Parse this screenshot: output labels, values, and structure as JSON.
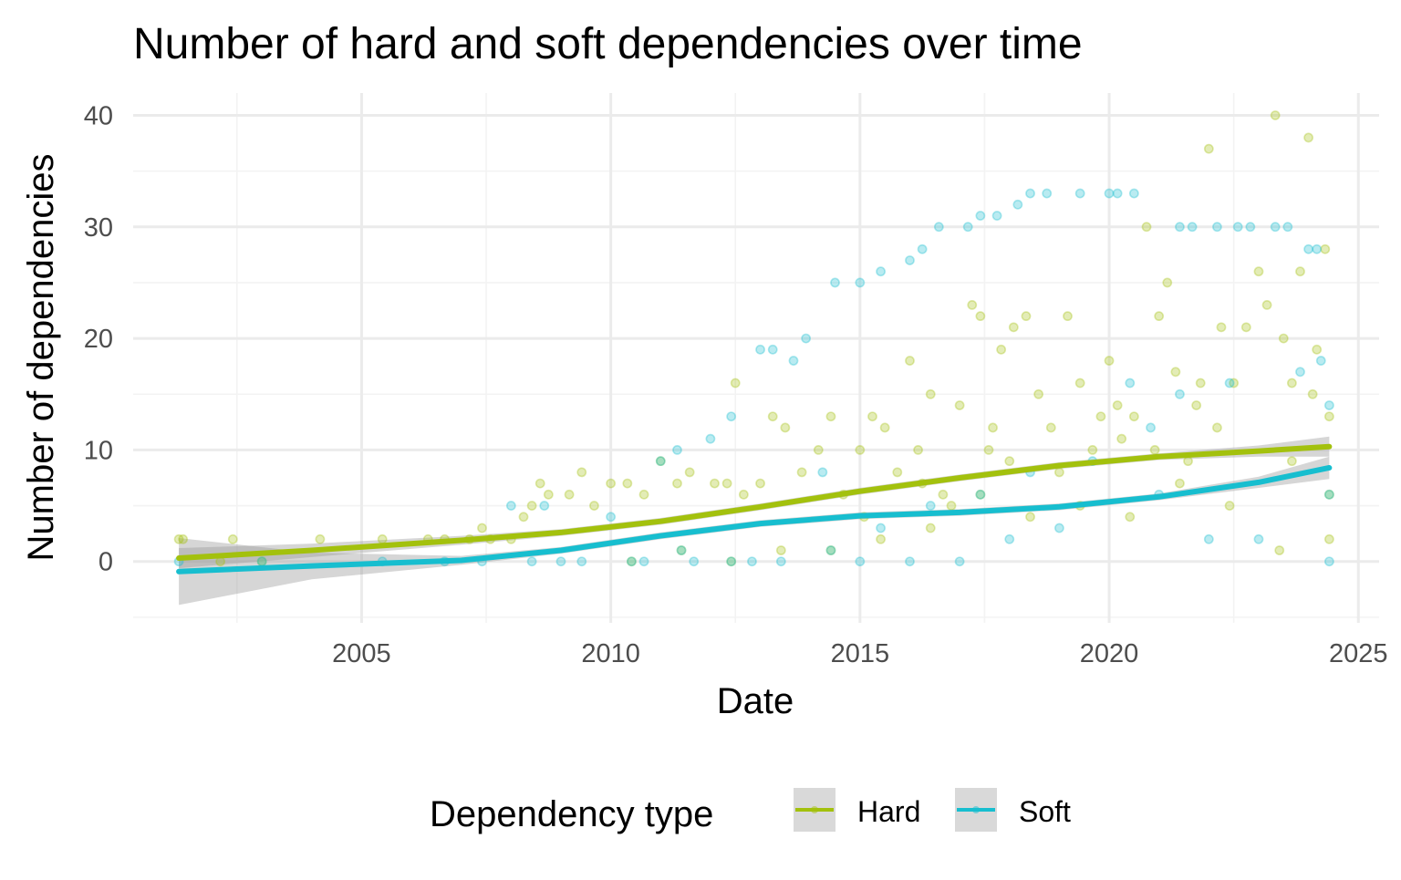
{
  "chart_data": {
    "type": "scatter",
    "title": "Number of hard and soft dependencies over time",
    "xlabel": "Date",
    "ylabel": "Number of dependencies",
    "x_ticks": [
      "2005",
      "2010",
      "2015",
      "2020",
      "2025"
    ],
    "y_ticks": [
      "0",
      "10",
      "20",
      "30",
      "40"
    ],
    "xlim": [
      "2000-06",
      "2025-06"
    ],
    "ylim": [
      -5.5,
      42
    ],
    "grid": true,
    "legend": {
      "title": "Dependency type",
      "position": "bottom",
      "entries": [
        "Hard",
        "Soft"
      ]
    },
    "series": [
      {
        "name": "Hard",
        "color": "#a3c10d",
        "points": [
          [
            "2001-05",
            2
          ],
          [
            "2001-06",
            2
          ],
          [
            "2002-03",
            0
          ],
          [
            "2002-06",
            2
          ],
          [
            "2003-01",
            0
          ],
          [
            "2004-03",
            2
          ],
          [
            "2005-06",
            2
          ],
          [
            "2006-05",
            2
          ],
          [
            "2006-09",
            2
          ],
          [
            "2007-03",
            2
          ],
          [
            "2007-06",
            3
          ],
          [
            "2007-08",
            2
          ],
          [
            "2008-01",
            2
          ],
          [
            "2008-04",
            4
          ],
          [
            "2008-06",
            5
          ],
          [
            "2008-08",
            7
          ],
          [
            "2008-10",
            6
          ],
          [
            "2009-03",
            6
          ],
          [
            "2009-06",
            8
          ],
          [
            "2009-09",
            5
          ],
          [
            "2010-01",
            7
          ],
          [
            "2010-05",
            7
          ],
          [
            "2010-09",
            6
          ],
          [
            "2011-01",
            9
          ],
          [
            "2011-05",
            7
          ],
          [
            "2011-08",
            8
          ],
          [
            "2012-02",
            7
          ],
          [
            "2012-05",
            7
          ],
          [
            "2012-07",
            16
          ],
          [
            "2012-09",
            6
          ],
          [
            "2013-01",
            7
          ],
          [
            "2013-04",
            13
          ],
          [
            "2013-07",
            12
          ],
          [
            "2013-11",
            8
          ],
          [
            "2014-03",
            10
          ],
          [
            "2014-06",
            13
          ],
          [
            "2014-09",
            6
          ],
          [
            "2015-01",
            10
          ],
          [
            "2015-04",
            13
          ],
          [
            "2015-07",
            12
          ],
          [
            "2015-10",
            8
          ],
          [
            "2016-01",
            18
          ],
          [
            "2016-03",
            10
          ],
          [
            "2016-06",
            15
          ],
          [
            "2016-09",
            6
          ],
          [
            "2017-01",
            14
          ],
          [
            "2017-04",
            23
          ],
          [
            "2017-06",
            22
          ],
          [
            "2017-08",
            10
          ],
          [
            "2017-11",
            19
          ],
          [
            "2018-02",
            21
          ],
          [
            "2018-05",
            22
          ],
          [
            "2018-08",
            15
          ],
          [
            "2018-11",
            12
          ],
          [
            "2019-03",
            22
          ],
          [
            "2019-06",
            16
          ],
          [
            "2019-09",
            10
          ],
          [
            "2020-01",
            18
          ],
          [
            "2020-04",
            11
          ],
          [
            "2020-07",
            13
          ],
          [
            "2020-10",
            30
          ],
          [
            "2021-01",
            22
          ],
          [
            "2021-03",
            25
          ],
          [
            "2021-05",
            17
          ],
          [
            "2021-08",
            9
          ],
          [
            "2021-10",
            14
          ],
          [
            "2022-01",
            37
          ],
          [
            "2022-04",
            21
          ],
          [
            "2022-07",
            16
          ],
          [
            "2022-10",
            21
          ],
          [
            "2023-01",
            26
          ],
          [
            "2023-03",
            23
          ],
          [
            "2023-05",
            40
          ],
          [
            "2023-07",
            20
          ],
          [
            "2023-09",
            16
          ],
          [
            "2023-11",
            26
          ],
          [
            "2024-01",
            38
          ],
          [
            "2024-03",
            19
          ],
          [
            "2024-05",
            28
          ],
          [
            "2024-06",
            13
          ],
          [
            "2024-06",
            2
          ],
          [
            "2020-06",
            4
          ],
          [
            "2021-06",
            7
          ],
          [
            "2022-06",
            5
          ],
          [
            "2019-06",
            5
          ],
          [
            "2018-06",
            4
          ],
          [
            "2017-06",
            6
          ],
          [
            "2016-06",
            3
          ],
          [
            "2015-06",
            2
          ],
          [
            "2014-06",
            1
          ],
          [
            "2013-06",
            1
          ],
          [
            "2012-06",
            0
          ],
          [
            "2011-06",
            1
          ],
          [
            "2010-06",
            0
          ],
          [
            "2023-06",
            1
          ],
          [
            "2024-06",
            6
          ],
          [
            "2022-03",
            12
          ],
          [
            "2020-03",
            14
          ],
          [
            "2019-01",
            8
          ],
          [
            "2018-01",
            9
          ],
          [
            "2016-11",
            5
          ],
          [
            "2015-02",
            4
          ],
          [
            "2023-09",
            9
          ],
          [
            "2024-02",
            15
          ],
          [
            "2021-11",
            16
          ],
          [
            "2020-12",
            10
          ],
          [
            "2019-11",
            13
          ],
          [
            "2017-09",
            12
          ],
          [
            "2016-04",
            7
          ]
        ],
        "trend": [
          [
            "2001-05",
            0.3
          ],
          [
            "2004-01",
            1.0
          ],
          [
            "2007-01",
            1.9
          ],
          [
            "2009-01",
            2.6
          ],
          [
            "2011-01",
            3.6
          ],
          [
            "2013-01",
            4.9
          ],
          [
            "2015-01",
            6.3
          ],
          [
            "2017-01",
            7.5
          ],
          [
            "2019-01",
            8.6
          ],
          [
            "2021-01",
            9.4
          ],
          [
            "2023-01",
            9.9
          ],
          [
            "2024-06",
            10.3
          ]
        ],
        "trend_ci": [
          [
            0.3,
            -0.6,
            1.2
          ],
          [
            1.0,
            0.4,
            1.6
          ],
          [
            1.9,
            1.5,
            2.3
          ],
          [
            2.6,
            2.3,
            2.9
          ],
          [
            3.6,
            3.3,
            3.9
          ],
          [
            4.9,
            4.6,
            5.2
          ],
          [
            6.3,
            6.0,
            6.6
          ],
          [
            7.5,
            7.2,
            7.8
          ],
          [
            8.6,
            8.3,
            8.9
          ],
          [
            9.4,
            9.1,
            9.7
          ],
          [
            9.9,
            9.4,
            10.4
          ],
          [
            10.3,
            9.4,
            11.2
          ]
        ]
      },
      {
        "name": "Soft",
        "color": "#17becf",
        "points": [
          [
            "2001-05",
            0
          ],
          [
            "2003-01",
            0
          ],
          [
            "2005-06",
            0
          ],
          [
            "2006-09",
            0
          ],
          [
            "2007-06",
            0
          ],
          [
            "2008-01",
            5
          ],
          [
            "2008-06",
            0
          ],
          [
            "2008-09",
            5
          ],
          [
            "2009-01",
            0
          ],
          [
            "2009-06",
            0
          ],
          [
            "2010-01",
            4
          ],
          [
            "2010-06",
            0
          ],
          [
            "2011-01",
            9
          ],
          [
            "2011-05",
            10
          ],
          [
            "2011-09",
            0
          ],
          [
            "2012-01",
            11
          ],
          [
            "2012-06",
            13
          ],
          [
            "2012-11",
            0
          ],
          [
            "2013-01",
            19
          ],
          [
            "2013-04",
            19
          ],
          [
            "2013-09",
            18
          ],
          [
            "2013-12",
            20
          ],
          [
            "2014-04",
            8
          ],
          [
            "2014-07",
            25
          ],
          [
            "2015-01",
            25
          ],
          [
            "2015-06",
            26
          ],
          [
            "2016-01",
            27
          ],
          [
            "2016-04",
            28
          ],
          [
            "2016-08",
            30
          ],
          [
            "2017-03",
            30
          ],
          [
            "2017-06",
            31
          ],
          [
            "2017-10",
            31
          ],
          [
            "2018-03",
            32
          ],
          [
            "2018-06",
            33
          ],
          [
            "2018-10",
            33
          ],
          [
            "2019-06",
            33
          ],
          [
            "2020-01",
            33
          ],
          [
            "2020-03",
            33
          ],
          [
            "2020-07",
            33
          ],
          [
            "2021-06",
            30
          ],
          [
            "2021-09",
            30
          ],
          [
            "2022-03",
            30
          ],
          [
            "2022-08",
            30
          ],
          [
            "2022-11",
            30
          ],
          [
            "2023-05",
            30
          ],
          [
            "2023-08",
            30
          ],
          [
            "2024-01",
            28
          ],
          [
            "2024-03",
            28
          ],
          [
            "2024-04",
            18
          ],
          [
            "2024-06",
            14
          ],
          [
            "2024-06",
            0
          ],
          [
            "2023-11",
            17
          ],
          [
            "2022-06",
            16
          ],
          [
            "2021-06",
            15
          ],
          [
            "2020-06",
            16
          ],
          [
            "2019-09",
            9
          ],
          [
            "2018-06",
            8
          ],
          [
            "2017-06",
            6
          ],
          [
            "2016-06",
            5
          ],
          [
            "2015-06",
            3
          ],
          [
            "2014-06",
            1
          ],
          [
            "2013-06",
            0
          ],
          [
            "2012-06",
            0
          ],
          [
            "2011-06",
            1
          ],
          [
            "2010-09",
            0
          ],
          [
            "2021-01",
            6
          ],
          [
            "2022-01",
            2
          ],
          [
            "2023-01",
            2
          ],
          [
            "2024-06",
            6
          ],
          [
            "2020-11",
            12
          ],
          [
            "2019-01",
            3
          ],
          [
            "2018-01",
            2
          ],
          [
            "2017-01",
            0
          ],
          [
            "2016-01",
            0
          ],
          [
            "2015-01",
            0
          ]
        ],
        "trend": [
          [
            "2001-05",
            -0.9
          ],
          [
            "2004-01",
            -0.4
          ],
          [
            "2007-01",
            0.1
          ],
          [
            "2009-01",
            1.0
          ],
          [
            "2011-01",
            2.3
          ],
          [
            "2013-01",
            3.4
          ],
          [
            "2015-01",
            4.1
          ],
          [
            "2017-01",
            4.4
          ],
          [
            "2019-01",
            4.9
          ],
          [
            "2021-01",
            5.8
          ],
          [
            "2023-01",
            7.1
          ],
          [
            "2024-06",
            8.4
          ]
        ],
        "trend_ci": [
          [
            -0.9,
            -3.9,
            2.1
          ],
          [
            -0.4,
            -1.6,
            0.8
          ],
          [
            0.1,
            -0.3,
            0.5
          ],
          [
            1.0,
            0.7,
            1.3
          ],
          [
            2.3,
            2.0,
            2.6
          ],
          [
            3.4,
            3.1,
            3.7
          ],
          [
            4.1,
            3.8,
            4.4
          ],
          [
            4.4,
            4.1,
            4.7
          ],
          [
            4.9,
            4.6,
            5.2
          ],
          [
            5.8,
            5.5,
            6.1
          ],
          [
            7.1,
            6.6,
            7.6
          ],
          [
            8.4,
            7.4,
            9.4
          ]
        ]
      }
    ]
  }
}
